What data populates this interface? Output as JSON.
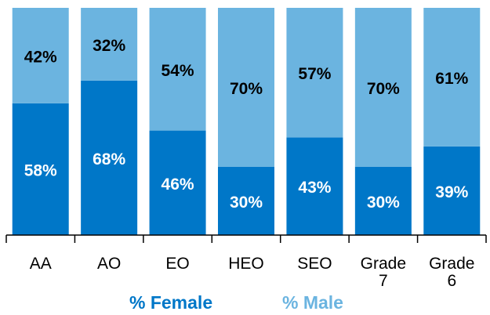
{
  "chart_data": {
    "type": "stacked_bar",
    "categories": [
      "AA",
      "AO",
      "EO",
      "HEO",
      "SEO",
      "Grade 7",
      "Grade 6"
    ],
    "series": [
      {
        "name": "% Female",
        "color": "#0077c8",
        "values": [
          58,
          68,
          46,
          30,
          43,
          30,
          39
        ],
        "value_labels": [
          "58%",
          "68%",
          "46%",
          "30%",
          "43%",
          "30%",
          "39%"
        ]
      },
      {
        "name": "% Male",
        "color": "#6bb4e0",
        "values": [
          42,
          32,
          54,
          70,
          57,
          70,
          61
        ],
        "value_labels": [
          "42%",
          "32%",
          "54%",
          "70%",
          "57%",
          "70%",
          "61%"
        ]
      }
    ],
    "ylim": [
      0,
      100
    ],
    "legend": "bottom"
  }
}
